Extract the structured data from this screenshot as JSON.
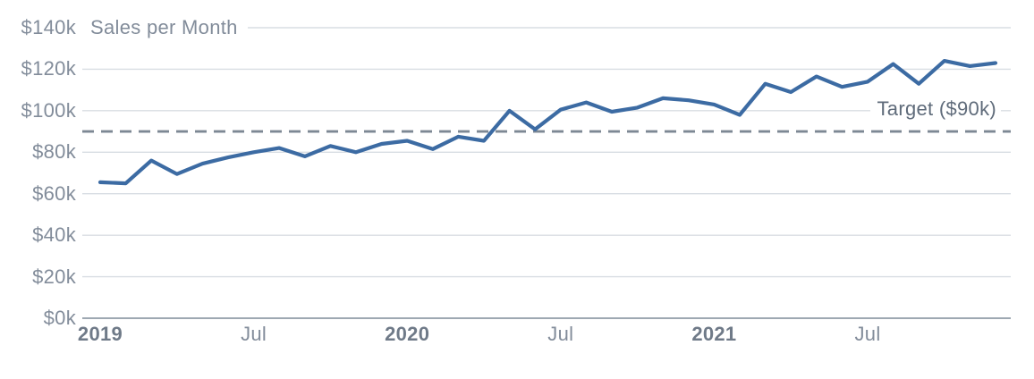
{
  "chart": {
    "title": "Sales per Month",
    "target_label": "Target ($90k)"
  },
  "colors": {
    "series": "#3c6ba3",
    "target_line": "#7d8894",
    "grid": "#d8dde3",
    "axis": "#919ba7",
    "tick_label": "#828c9a",
    "year_label": "#6f7a88",
    "title": "#828c9a",
    "target_label": "#5f6b7a"
  },
  "chart_data": {
    "type": "line",
    "title": "Sales per Month",
    "unit": "USD thousands ($k)",
    "x": [
      "Jan 2019",
      "Feb 2019",
      "Mar 2019",
      "Apr 2019",
      "May 2019",
      "Jun 2019",
      "Jul 2019",
      "Aug 2019",
      "Sep 2019",
      "Oct 2019",
      "Nov 2019",
      "Dec 2019",
      "Jan 2020",
      "Feb 2020",
      "Mar 2020",
      "Apr 2020",
      "May 2020",
      "Jun 2020",
      "Jul 2020",
      "Aug 2020",
      "Sep 2020",
      "Oct 2020",
      "Nov 2020",
      "Dec 2020",
      "Jan 2021",
      "Feb 2021",
      "Mar 2021",
      "Apr 2021",
      "May 2021",
      "Jun 2021",
      "Jul 2021",
      "Aug 2021",
      "Sep 2021",
      "Oct 2021",
      "Nov 2021",
      "Dec 2021"
    ],
    "series": [
      {
        "name": "Sales per Month",
        "values": [
          65.5,
          65,
          76,
          69.5,
          74.5,
          77.5,
          80,
          82,
          78,
          83,
          80,
          84,
          85.5,
          81.5,
          87.5,
          85.5,
          100,
          91,
          100.5,
          104,
          99.5,
          101.5,
          106,
          105,
          103,
          98,
          113,
          109,
          116.5,
          111.5,
          114,
          122.5,
          113,
          124,
          121.5,
          123
        ]
      }
    ],
    "ylim": [
      0,
      140
    ],
    "y_ticks": [
      {
        "value": 140,
        "label": "$140k"
      },
      {
        "value": 120,
        "label": "$120k"
      },
      {
        "value": 100,
        "label": "$100k"
      },
      {
        "value": 80,
        "label": "$80k"
      },
      {
        "value": 60,
        "label": "$60k"
      },
      {
        "value": 40,
        "label": "$40k"
      },
      {
        "value": 20,
        "label": "$20k"
      },
      {
        "value": 0,
        "label": "$0k"
      }
    ],
    "x_ticks": [
      {
        "label": "2019",
        "month_index": 0,
        "bold": true
      },
      {
        "label": "Jul",
        "month_index": 6,
        "bold": false
      },
      {
        "label": "2020",
        "month_index": 12,
        "bold": true
      },
      {
        "label": "Jul",
        "month_index": 18,
        "bold": false
      },
      {
        "label": "2021",
        "month_index": 24,
        "bold": true
      },
      {
        "label": "Jul",
        "month_index": 30,
        "bold": false
      }
    ],
    "target_line": {
      "value": 90,
      "label": "Target ($90k)",
      "style": "dashed"
    },
    "grid": true,
    "legend": "none"
  }
}
